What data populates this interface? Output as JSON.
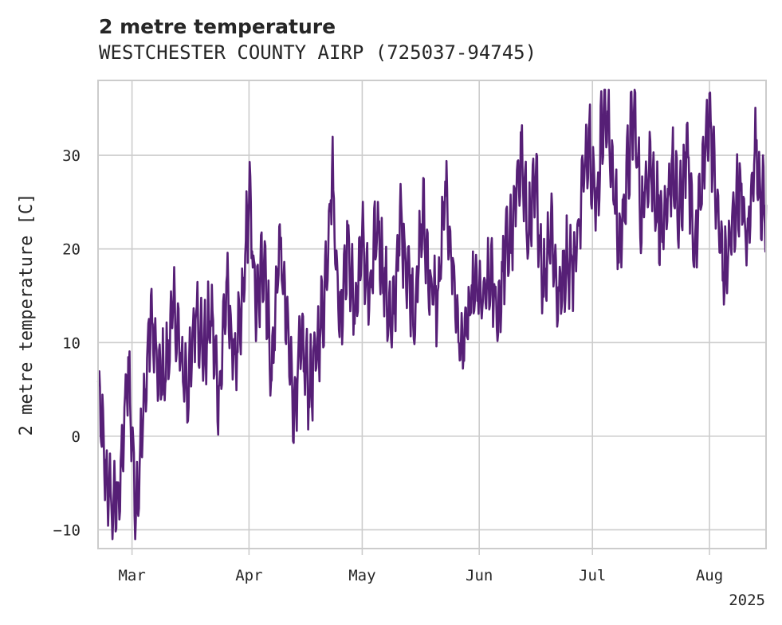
{
  "chart_data": {
    "type": "line",
    "title": "2 metre temperature",
    "subtitle": "WESTCHESTER COUNTY AIRP (725037-94745)",
    "xlabel": "",
    "ylabel": "2 metre temperature [C]",
    "x_range": [
      "2025-02-18",
      "2025-08-17"
    ],
    "xlim": [
      "2025-02-20",
      "2025-08-16"
    ],
    "ylim": [
      -12,
      38
    ],
    "yticks": [
      -10,
      0,
      10,
      20,
      30
    ],
    "ytick_labels": [
      "−10",
      "0",
      "10",
      "20",
      "30"
    ],
    "xticks": [
      "2025-03-01",
      "2025-04-01",
      "2025-05-01",
      "2025-06-01",
      "2025-07-01",
      "2025-08-01"
    ],
    "xtick_labels": [
      "Mar",
      "Apr",
      "May",
      "Jun",
      "Jul",
      "Aug"
    ],
    "year_label": "2025",
    "grid": true,
    "color": "#561F76",
    "series": [
      {
        "name": "",
        "x": [
          "2025-02-20",
          "2025-02-22",
          "2025-02-24",
          "2025-02-26",
          "2025-02-28",
          "2025-03-02",
          "2025-03-04",
          "2025-03-06",
          "2025-03-08",
          "2025-03-10",
          "2025-03-12",
          "2025-03-14",
          "2025-03-16",
          "2025-03-18",
          "2025-03-20",
          "2025-03-22",
          "2025-03-24",
          "2025-03-26",
          "2025-03-28",
          "2025-03-30",
          "2025-04-01",
          "2025-04-03",
          "2025-04-05",
          "2025-04-07",
          "2025-04-09",
          "2025-04-11",
          "2025-04-13",
          "2025-04-15",
          "2025-04-17",
          "2025-04-19",
          "2025-04-21",
          "2025-04-23",
          "2025-04-25",
          "2025-04-27",
          "2025-04-29",
          "2025-05-01",
          "2025-05-03",
          "2025-05-05",
          "2025-05-07",
          "2025-05-09",
          "2025-05-11",
          "2025-05-13",
          "2025-05-15",
          "2025-05-17",
          "2025-05-19",
          "2025-05-21",
          "2025-05-23",
          "2025-05-25",
          "2025-05-27",
          "2025-05-29",
          "2025-05-31",
          "2025-06-02",
          "2025-06-04",
          "2025-06-06",
          "2025-06-08",
          "2025-06-10",
          "2025-06-12",
          "2025-06-14",
          "2025-06-16",
          "2025-06-18",
          "2025-06-20",
          "2025-06-22",
          "2025-06-24",
          "2025-06-26",
          "2025-06-28",
          "2025-06-30",
          "2025-07-02",
          "2025-07-04",
          "2025-07-06",
          "2025-07-08",
          "2025-07-10",
          "2025-07-12",
          "2025-07-14",
          "2025-07-16",
          "2025-07-18",
          "2025-07-20",
          "2025-07-22",
          "2025-07-24",
          "2025-07-26",
          "2025-07-28",
          "2025-07-30",
          "2025-08-01",
          "2025-08-03",
          "2025-08-05",
          "2025-08-07",
          "2025-08-09",
          "2025-08-11",
          "2025-08-13",
          "2025-08-15",
          "2025-08-16"
        ],
        "y": [
          5.0,
          -4.0,
          -8.0,
          -5.0,
          8.0,
          -8.0,
          2.0,
          13.0,
          6.0,
          7.0,
          14.0,
          8.0,
          5.0,
          14.0,
          9.0,
          13.0,
          4.0,
          16.0,
          8.0,
          12.0,
          26.0,
          13.0,
          20.0,
          6.0,
          21.0,
          12.0,
          3.0,
          10.0,
          5.0,
          9.0,
          15.0,
          28.5,
          12.0,
          21.0,
          13.0,
          21.0,
          14.0,
          23.0,
          16.0,
          11.0,
          23.0,
          18.0,
          13.0,
          24.0,
          16.0,
          14.0,
          26.0,
          18.0,
          9.0,
          12.0,
          16.0,
          14.0,
          17.0,
          13.0,
          20.0,
          22.0,
          31.0,
          21.0,
          27.0,
          16.0,
          23.0,
          14.0,
          19.0,
          18.0,
          25.0,
          33.0,
          24.0,
          36.0,
          30.0,
          20.0,
          27.0,
          35.0,
          23.0,
          30.0,
          25.0,
          21.0,
          29.0,
          23.0,
          31.0,
          20.0,
          27.0,
          35.0,
          24.0,
          17.0,
          22.0,
          27.0,
          20.0,
          31.0,
          25.0,
          24.5
        ]
      }
    ]
  }
}
